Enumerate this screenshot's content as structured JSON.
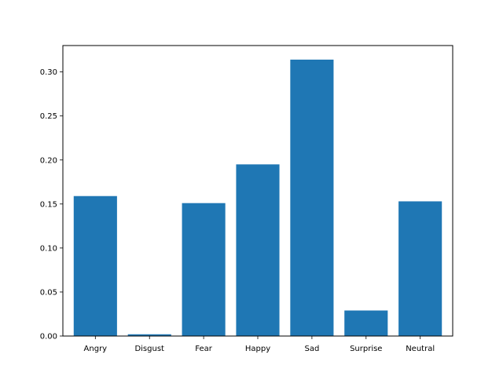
{
  "chart_data": {
    "type": "bar",
    "categories": [
      "Angry",
      "Disgust",
      "Fear",
      "Happy",
      "Sad",
      "Surprise",
      "Neutral"
    ],
    "values": [
      0.159,
      0.002,
      0.151,
      0.195,
      0.314,
      0.029,
      0.153
    ],
    "title": "",
    "xlabel": "",
    "ylabel": "",
    "ylim": [
      0,
      0.33
    ],
    "yticks": [
      "0.00",
      "0.05",
      "0.10",
      "0.15",
      "0.20",
      "0.25",
      "0.30"
    ],
    "grid": false,
    "bar_color": "#1f77b4"
  }
}
